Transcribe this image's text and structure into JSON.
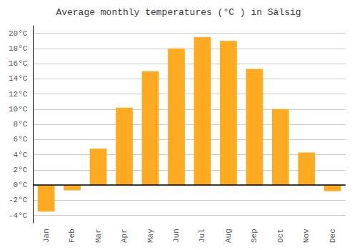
{
  "chart_data": {
    "type": "bar",
    "title": "Average monthly temperatures (°C ) in Sălsig",
    "categories": [
      "Jan",
      "Feb",
      "Mar",
      "Apr",
      "May",
      "Jun",
      "Jul",
      "Aug",
      "Sep",
      "Oct",
      "Nov",
      "Dec"
    ],
    "values": [
      -3.5,
      -0.7,
      4.8,
      10.2,
      15.0,
      18.0,
      19.5,
      19.0,
      15.3,
      10.0,
      4.3,
      -0.8
    ],
    "color": "#FFAA20",
    "ylim": [
      -5,
      21
    ],
    "yticks": [
      {
        "value": -4,
        "label": "-4°C"
      },
      {
        "value": -2,
        "label": "-2°C"
      },
      {
        "value": 0,
        "label": "0°C"
      },
      {
        "value": 2,
        "label": "2°C"
      },
      {
        "value": 4,
        "label": "4°C"
      },
      {
        "value": 6,
        "label": "6°C"
      },
      {
        "value": 8,
        "label": "8°C"
      },
      {
        "value": 10,
        "label": "10°C"
      },
      {
        "value": 12,
        "label": "12°C"
      },
      {
        "value": 14,
        "label": "14°C"
      },
      {
        "value": 16,
        "label": "16°C"
      },
      {
        "value": 18,
        "label": "18°C"
      },
      {
        "value": 20,
        "label": "20°C"
      }
    ],
    "grid": true
  }
}
